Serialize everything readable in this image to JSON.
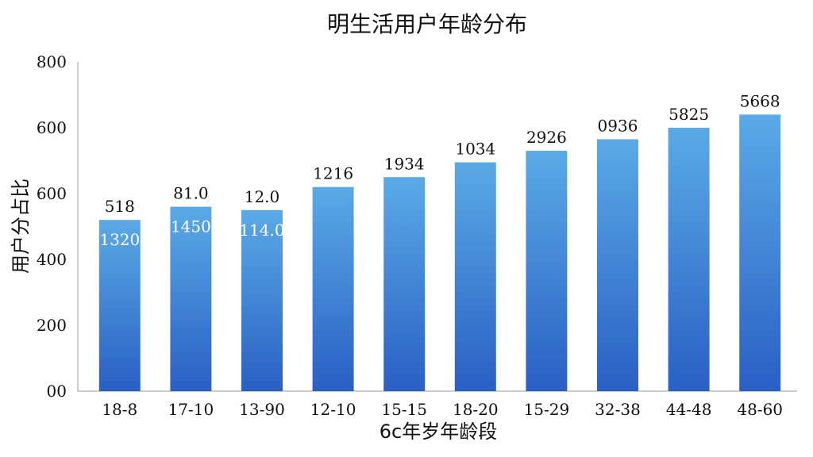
{
  "chart_data": {
    "type": "bar",
    "title": "明生活用户年龄分布",
    "xlabel": "6c年岁年龄段",
    "ylabel": "用户分占比",
    "y_ticks": [
      "800",
      "600",
      "600",
      "400",
      "200",
      "00"
    ],
    "categories": [
      "18-8",
      "17-10",
      "13-90",
      "12-10",
      "15-15",
      "18-20",
      "15-29",
      "32-38",
      "44-48",
      "48-60"
    ],
    "values": [
      520,
      560,
      550,
      620,
      650,
      695,
      730,
      765,
      800,
      840
    ],
    "top_labels": [
      "518",
      "81.0",
      "12.0",
      "1216",
      "1934",
      "1034",
      "2926",
      "0936",
      "5825",
      "5668"
    ],
    "inner_labels": [
      "1320",
      "1450",
      "114.0",
      "",
      "",
      "",
      "",
      "",
      "",
      ""
    ],
    "ylim": [
      0,
      1000
    ],
    "grid": false,
    "bar_color_top": "#5aaae6",
    "bar_color_bottom": "#2a5fc4"
  }
}
